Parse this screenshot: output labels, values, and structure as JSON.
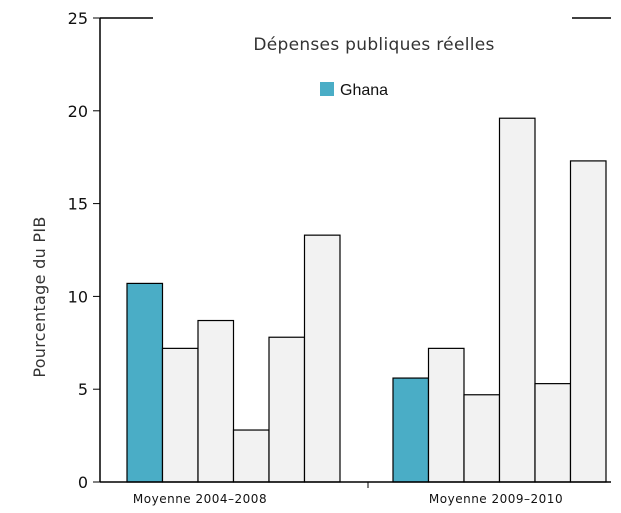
{
  "chart_data": {
    "type": "bar",
    "title": "Dépenses publiques réelles",
    "ylabel": "Pourcentage du PIB",
    "xlabel": "",
    "ylim": [
      0,
      25
    ],
    "yticks": [
      0,
      5,
      10,
      15,
      20,
      25
    ],
    "ytick_labels": [
      "0",
      "5",
      "10",
      "15",
      "20",
      "25"
    ],
    "categories": [
      "Moyenne  2004–2008",
      "Moyenne  2009–2010"
    ],
    "legend": {
      "entries": [
        "Ghana"
      ],
      "placement": "top-center"
    },
    "colors": {
      "highlight": "#4aadc6",
      "other": "#f2f2f2",
      "edge": "#000000"
    },
    "grid": false,
    "groups": [
      {
        "category": "Moyenne  2004–2008",
        "values": [
          10.7,
          7.2,
          8.7,
          2.8,
          7.8,
          13.3
        ],
        "highlight_index": 0
      },
      {
        "category": "Moyenne  2009–2010",
        "values": [
          5.6,
          7.2,
          4.7,
          19.6,
          5.3,
          17.3
        ],
        "highlight_index": 0
      }
    ]
  }
}
